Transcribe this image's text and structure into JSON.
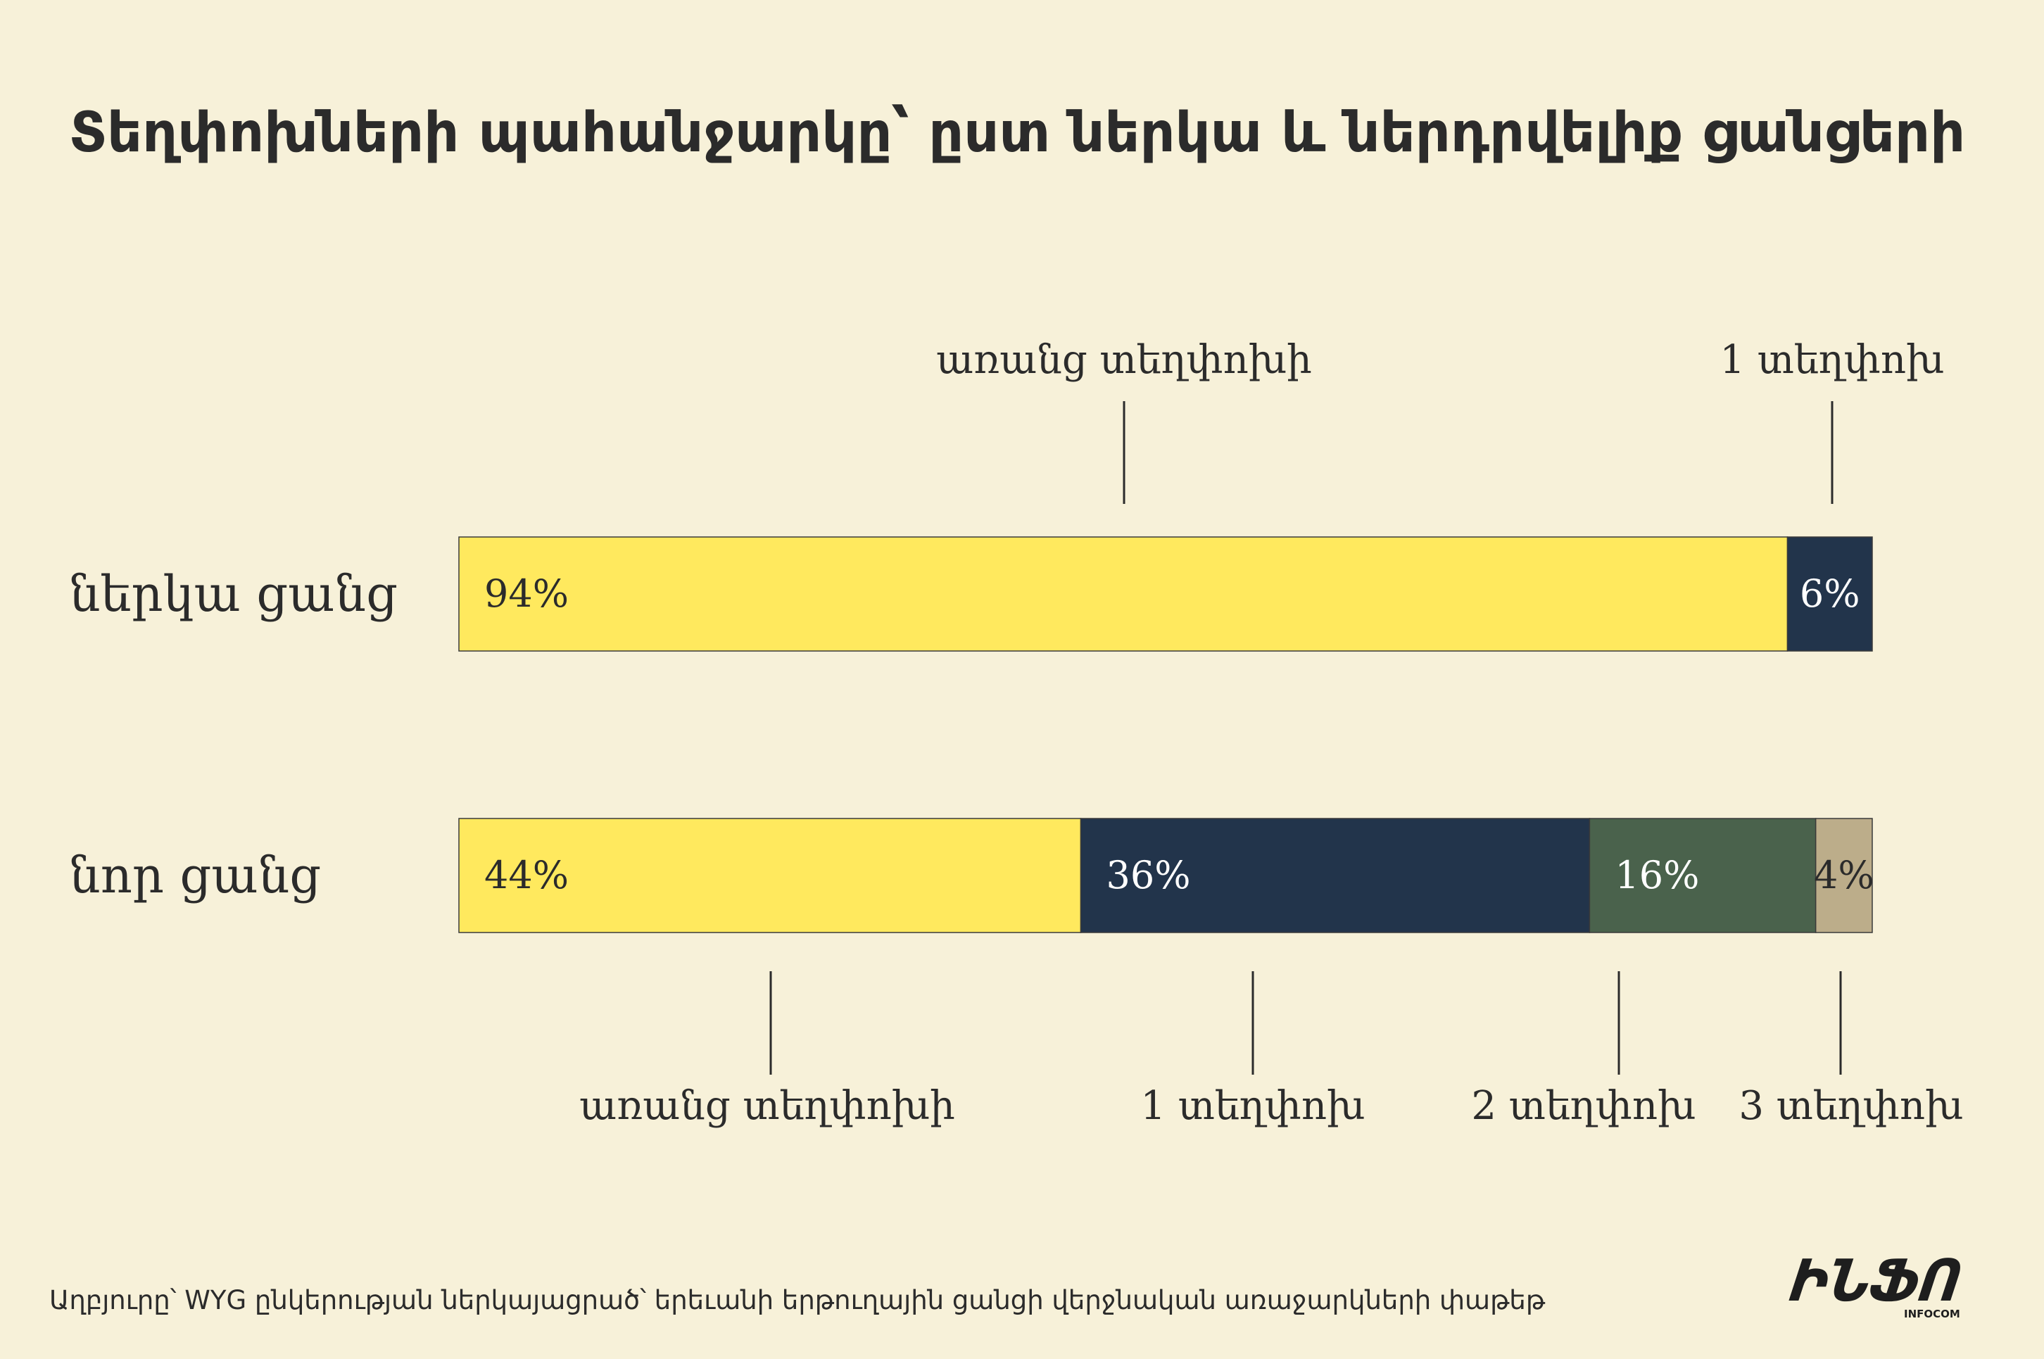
{
  "title": "Տեղփոխների պահանջարկը՝ ըստ ներկա և ներդրվելիք ցանցերի",
  "source": "Աղբյուրը՝ WYG ընկերության ներկայացրած՝ երեւանի երթուղային ցանցի վերջնական առաջարկների փաթեթ",
  "logo": {
    "text": "ԻՆՖՈ",
    "sub": "INFOCOM"
  },
  "colors": {
    "background": "#f7f1d9",
    "yellow": "#ffe95e",
    "navy": "#22344b",
    "green": "#4a624c",
    "tan": "#bcad8a"
  },
  "chart_data": {
    "type": "bar",
    "orientation": "horizontal-stacked-100",
    "categories": [
      "ներկա ցանց",
      "նոր ցանց"
    ],
    "series": [
      {
        "name": "առանց տեղփոխի",
        "values": [
          94,
          44
        ],
        "color": "#ffe95e"
      },
      {
        "name": "1 տեղփոխ",
        "values": [
          6,
          36
        ],
        "color": "#22344b"
      },
      {
        "name": "2 տեղփոխ",
        "values": [
          0,
          16
        ],
        "color": "#4a624c"
      },
      {
        "name": "3 տեղփոխ",
        "values": [
          0,
          4
        ],
        "color": "#bcad8a"
      }
    ],
    "value_labels": [
      [
        "94%",
        "6%"
      ],
      [
        "44%",
        "36%",
        "16%",
        "4%"
      ]
    ],
    "top_legend": [
      "առանց տեղփոխի",
      "1 տեղփոխ"
    ],
    "bottom_legend": [
      "առանց տեղփոխի",
      "1 տեղփոխ",
      "2 տեղփոխ",
      "3 տեղփոխ"
    ],
    "title": "Տեղփոխների պահանջարկը՝ ըստ ներկա և ներդրվելիք ցանցերի",
    "xlim": [
      0,
      100
    ]
  }
}
